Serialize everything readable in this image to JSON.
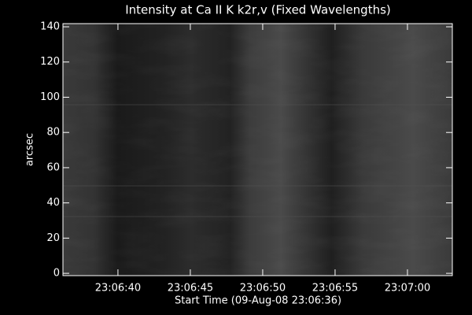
{
  "chart_data": {
    "type": "image",
    "title": "Intensity at Ca II K k2r,v (Fixed Wavelengths)",
    "x_label": "Start Time (09-Aug-08 23:06:36)",
    "y_label": "arcsec",
    "xlim": [
      83196.2,
      83223.1
    ],
    "xticks": [
      {
        "value": 83200,
        "label": "23:06:40"
      },
      {
        "value": 83205,
        "label": "23:06:45"
      },
      {
        "value": 83210,
        "label": "23:06:50"
      },
      {
        "value": 83215,
        "label": "23:06:55"
      },
      {
        "value": 83220,
        "label": "23:07:00"
      }
    ],
    "ylim": [
      -1.3,
      141.8
    ],
    "yticks": [
      0,
      20,
      40,
      60,
      80,
      100,
      120,
      140
    ]
  }
}
